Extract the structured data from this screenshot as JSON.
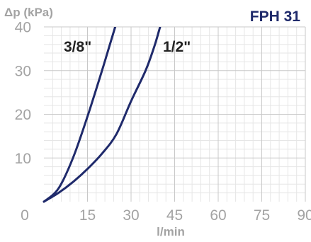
{
  "chart_data": {
    "type": "line",
    "title": "FPH 31",
    "ylabel": "Δp (kPa)",
    "xlabel": "l/min",
    "xlim": [
      0,
      90
    ],
    "ylim": [
      0,
      40
    ],
    "x_ticks": [
      "0",
      "15",
      "30",
      "45",
      "60",
      "75",
      "90"
    ],
    "y_ticks": [
      "10",
      "20",
      "30",
      "40"
    ],
    "grid": true,
    "series": [
      {
        "name": "3/8\"",
        "x": [
          0,
          5,
          10,
          15,
          20,
          22.5,
          25
        ],
        "y": [
          0,
          3,
          10,
          19.5,
          30,
          35.5,
          41
        ]
      },
      {
        "name": "1/2\"",
        "x": [
          0,
          5,
          10,
          15,
          20,
          25,
          30,
          35,
          38,
          40
        ],
        "y": [
          0,
          2,
          4.5,
          7.5,
          11,
          15.5,
          23,
          30,
          35.5,
          40
        ]
      }
    ],
    "colors": {
      "line": "#1f2a6b",
      "title": "#1f2a6b",
      "grid_major": "#c8c8c8",
      "grid_minor": "#e6e6e6",
      "axis_text": "#a3a3a3"
    }
  }
}
